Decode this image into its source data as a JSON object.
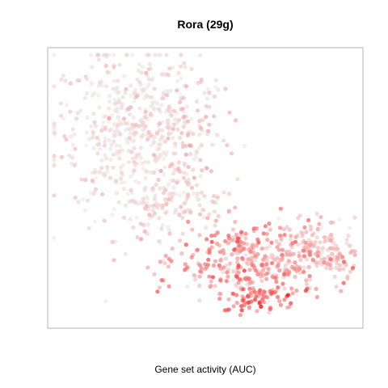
{
  "chart_data": {
    "type": "scatter",
    "title": "Rora (29g)",
    "xlabel": "Gene set activity (AUC)",
    "ylabel": "",
    "grid": false,
    "legend": "none",
    "color_low": "#eeeeee",
    "color_high": "#ff0000",
    "clusters": [
      {
        "name": "upper-left",
        "count": 470,
        "cx": 0.24,
        "cy": 0.72,
        "sx": 0.12,
        "sy": 0.16,
        "act_mean": 0.05,
        "act_sd": 0.08
      },
      {
        "name": "upper-right-arm",
        "count": 110,
        "cx": 0.44,
        "cy": 0.74,
        "sx": 0.07,
        "sy": 0.12,
        "act_mean": 0.12,
        "act_sd": 0.1
      },
      {
        "name": "middle-band",
        "count": 120,
        "cx": 0.4,
        "cy": 0.45,
        "sx": 0.08,
        "sy": 0.07,
        "act_mean": 0.1,
        "act_sd": 0.08
      },
      {
        "name": "lower-right",
        "count": 330,
        "cx": 0.65,
        "cy": 0.22,
        "sx": 0.12,
        "sy": 0.07,
        "act_mean": 0.35,
        "act_sd": 0.18
      },
      {
        "name": "far-right",
        "count": 150,
        "cx": 0.88,
        "cy": 0.27,
        "sx": 0.07,
        "sy": 0.06,
        "act_mean": 0.18,
        "act_sd": 0.1
      },
      {
        "name": "hotspot",
        "count": 60,
        "cx": 0.68,
        "cy": 0.09,
        "sx": 0.06,
        "sy": 0.03,
        "act_mean": 0.6,
        "act_sd": 0.18
      }
    ]
  }
}
